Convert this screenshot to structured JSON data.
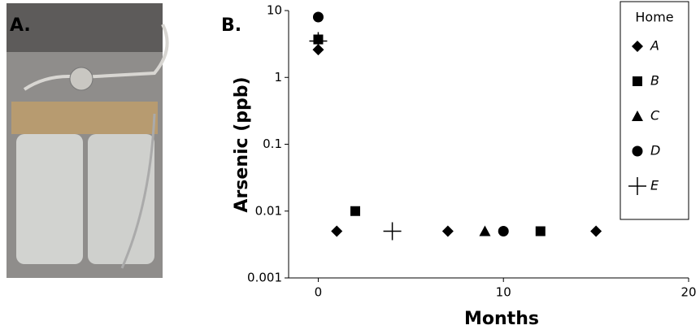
{
  "photo_label": "A.",
  "chart_data": {
    "type": "scatter",
    "panel_label": "B.",
    "y_label": "Arsenic (ppb)",
    "x_label": "Months",
    "log_y": true,
    "ylim": [
      0.001,
      10
    ],
    "yticks": [
      0.001,
      0.01,
      0.1,
      1,
      10
    ],
    "xlim": [
      -1.6,
      20
    ],
    "xticks": [
      0,
      10,
      20
    ],
    "legend_title": "Home",
    "legend_position": "upper right",
    "series": [
      {
        "name": "A",
        "marker": "diamond",
        "color": "#000000",
        "x": [
          0,
          1,
          7,
          15
        ],
        "values": [
          2.6,
          0.005,
          0.005,
          0.005
        ]
      },
      {
        "name": "B",
        "marker": "square",
        "color": "#000000",
        "x": [
          0,
          2,
          12
        ],
        "values": [
          3.7,
          0.01,
          0.005
        ]
      },
      {
        "name": "C",
        "marker": "triangle",
        "color": "#000000",
        "x": [
          9
        ],
        "values": [
          0.005
        ]
      },
      {
        "name": "D",
        "marker": "circle",
        "color": "#000000",
        "x": [
          0,
          10
        ],
        "values": [
          8,
          0.005
        ]
      },
      {
        "name": "E",
        "marker": "plus",
        "color": "#000000",
        "x": [
          0,
          4
        ],
        "values": [
          3.5,
          0.005
        ]
      }
    ]
  }
}
